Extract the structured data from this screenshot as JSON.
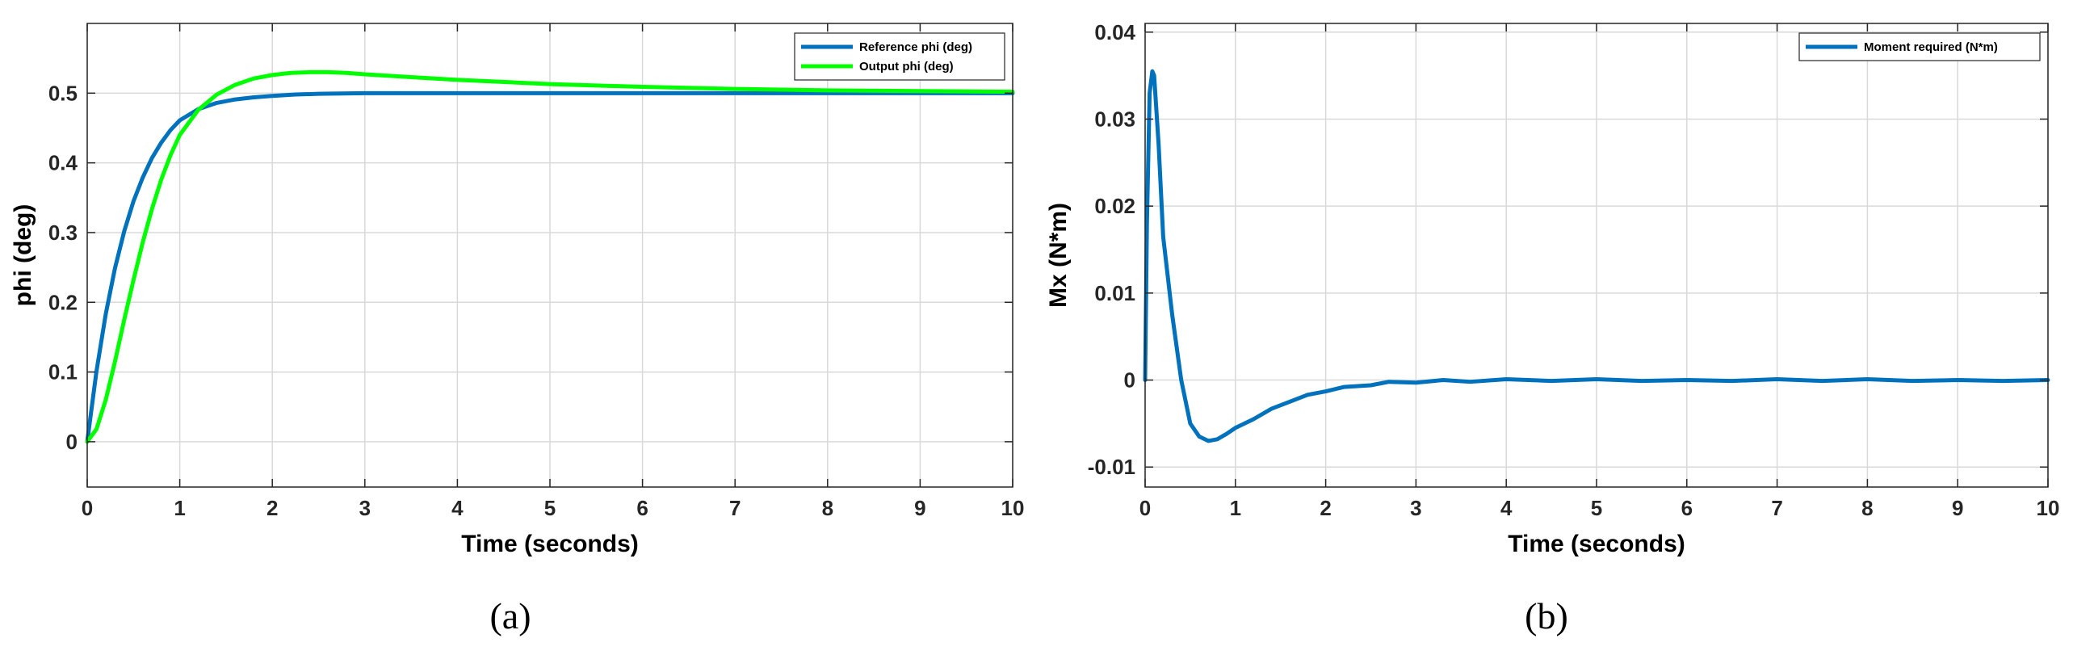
{
  "chart_data": [
    {
      "type": "line",
      "panel_label": "(a)",
      "xlabel": "Time (seconds)",
      "ylabel": "phi (deg)",
      "xlim": [
        0,
        10
      ],
      "ylim": [
        -0.065,
        0.6
      ],
      "xticks": [
        0,
        1,
        2,
        3,
        4,
        5,
        6,
        7,
        8,
        9,
        10
      ],
      "yticks": [
        0,
        0.1,
        0.2,
        0.3,
        0.4,
        0.5
      ],
      "ytick_labels": [
        "0",
        "0.1",
        "0.2",
        "0.3",
        "0.4",
        "0.5"
      ],
      "grid": true,
      "legend_position": "top-right",
      "series": [
        {
          "name": "Reference phi (deg)",
          "color": "#0072BD",
          "x": [
            0,
            0.1,
            0.2,
            0.3,
            0.4,
            0.5,
            0.6,
            0.7,
            0.8,
            0.9,
            1.0,
            1.2,
            1.4,
            1.6,
            1.8,
            2.0,
            2.25,
            2.5,
            3.0,
            4.0,
            5.0,
            6.0,
            7.0,
            8.0,
            9.0,
            10.0
          ],
          "y": [
            0,
            0.101,
            0.183,
            0.249,
            0.302,
            0.345,
            0.379,
            0.407,
            0.429,
            0.447,
            0.461,
            0.477,
            0.486,
            0.491,
            0.494,
            0.496,
            0.498,
            0.499,
            0.5,
            0.5,
            0.5,
            0.5,
            0.5,
            0.5,
            0.5,
            0.5
          ]
        },
        {
          "name": "Output phi (deg)",
          "color": "#00FF00",
          "x": [
            0,
            0.1,
            0.2,
            0.3,
            0.4,
            0.5,
            0.6,
            0.7,
            0.8,
            0.9,
            1.0,
            1.2,
            1.4,
            1.6,
            1.8,
            2.0,
            2.2,
            2.4,
            2.6,
            2.8,
            3.0,
            3.5,
            4.0,
            5.0,
            6.0,
            7.0,
            8.0,
            9.0,
            10.0
          ],
          "y": [
            0,
            0.018,
            0.06,
            0.115,
            0.175,
            0.232,
            0.286,
            0.334,
            0.376,
            0.411,
            0.44,
            0.476,
            0.498,
            0.512,
            0.521,
            0.526,
            0.529,
            0.53,
            0.53,
            0.529,
            0.527,
            0.523,
            0.519,
            0.513,
            0.509,
            0.506,
            0.504,
            0.503,
            0.502
          ]
        }
      ]
    },
    {
      "type": "line",
      "panel_label": "(b)",
      "xlabel": "Time (seconds)",
      "ylabel": "Mx (N*m)",
      "xlim": [
        0,
        10
      ],
      "ylim": [
        -0.0123,
        0.041
      ],
      "xticks": [
        0,
        1,
        2,
        3,
        4,
        5,
        6,
        7,
        8,
        9,
        10
      ],
      "yticks": [
        -0.01,
        0,
        0.01,
        0.02,
        0.03,
        0.04
      ],
      "ytick_labels": [
        "-0.01",
        "0",
        "0.01",
        "0.02",
        "0.03",
        "0.04"
      ],
      "grid": true,
      "legend_position": "top-right",
      "series": [
        {
          "name": "Moment required (N*m)",
          "color": "#0072BD",
          "x": [
            0,
            0.02,
            0.05,
            0.08,
            0.1,
            0.15,
            0.2,
            0.3,
            0.4,
            0.5,
            0.6,
            0.7,
            0.8,
            0.9,
            1.0,
            1.2,
            1.4,
            1.6,
            1.8,
            2.0,
            2.2,
            2.5,
            2.7,
            3.0,
            3.3,
            3.6,
            4.0,
            4.5,
            5.0,
            5.5,
            6.0,
            6.5,
            7.0,
            7.5,
            8.0,
            8.5,
            9.0,
            9.5,
            10.0
          ],
          "y": [
            0,
            0.018,
            0.033,
            0.0355,
            0.035,
            0.027,
            0.0165,
            0.0075,
            0.0,
            -0.005,
            -0.0065,
            -0.007,
            -0.0068,
            -0.0062,
            -0.0055,
            -0.0045,
            -0.0033,
            -0.0025,
            -0.0017,
            -0.0013,
            -0.0008,
            -0.0006,
            -0.0002,
            -0.0003,
            0.0,
            -0.0002,
            0.0001,
            -0.0001,
            0.0001,
            -0.0001,
            0.0,
            -0.0001,
            0.0001,
            -0.0001,
            0.0001,
            -0.0001,
            0.0,
            -0.0001,
            0.0
          ]
        }
      ]
    }
  ]
}
